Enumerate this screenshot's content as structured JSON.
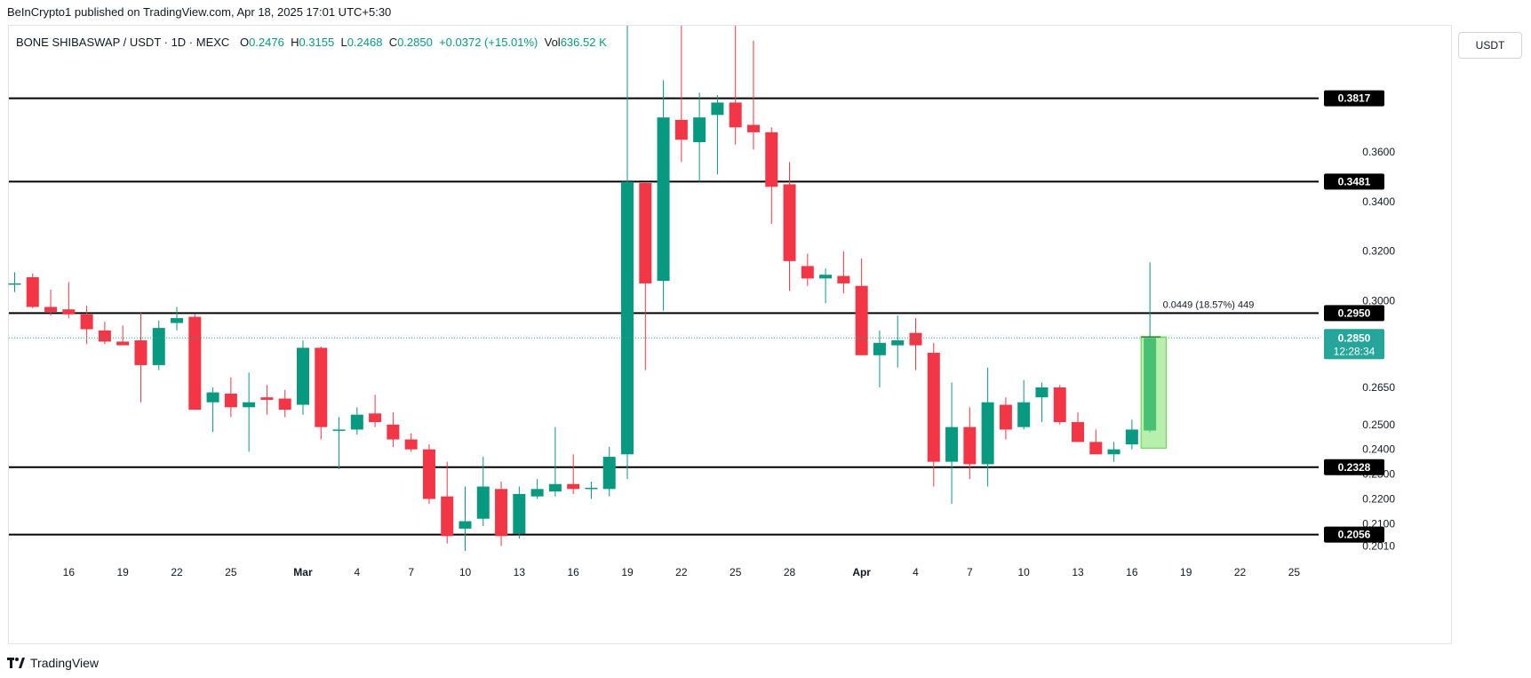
{
  "header": {
    "publisher": "BeInCrypto1 published on TradingView.com, Apr 18, 2025 17:01 UTC+5:30"
  },
  "legend": {
    "symbol": "BONE SHIBASWAP / USDT · 1D · MEXC",
    "o_label": "O",
    "o": "0.2476",
    "h_label": "H",
    "h": "0.3155",
    "l_label": "L",
    "l": "0.2468",
    "c_label": "C",
    "c": "0.2850",
    "change": "+0.0372 (+15.01%)",
    "vol_label": "Vol",
    "vol": "636.52 K"
  },
  "currency_button": "USDT",
  "footer": {
    "logo_text": "TradingView",
    "logo_icon": "tradingview-logo-icon"
  },
  "colors": {
    "up": "#089981",
    "down": "#f23645",
    "accent": "#26a69a",
    "measure": "#7ee26a"
  },
  "chart_data": {
    "type": "candlestick",
    "title": "BONE SHIBASWAP / USDT · 1D · MEXC",
    "ylim": [
      0.199,
      0.411
    ],
    "y_ticks": [
      "0.3600",
      "0.3400",
      "0.3200",
      "0.3000",
      "0.2650",
      "0.2500",
      "0.2400",
      "0.2300",
      "0.2200",
      "0.2100",
      "0.2010"
    ],
    "x_ticks": [
      {
        "label": "16",
        "day": 16
      },
      {
        "label": "19",
        "day": 19
      },
      {
        "label": "22",
        "day": 22
      },
      {
        "label": "25",
        "day": 25
      },
      {
        "label": "Mar",
        "day": 29
      },
      {
        "label": "4",
        "day": 32
      },
      {
        "label": "7",
        "day": 35
      },
      {
        "label": "10",
        "day": 38
      },
      {
        "label": "13",
        "day": 41
      },
      {
        "label": "16",
        "day": 44
      },
      {
        "label": "19",
        "day": 47
      },
      {
        "label": "22",
        "day": 50
      },
      {
        "label": "25",
        "day": 53
      },
      {
        "label": "28",
        "day": 56
      },
      {
        "label": "Apr",
        "day": 60
      },
      {
        "label": "4",
        "day": 63
      },
      {
        "label": "7",
        "day": 66
      },
      {
        "label": "10",
        "day": 69
      },
      {
        "label": "13",
        "day": 72
      },
      {
        "label": "16",
        "day": 75
      },
      {
        "label": "19",
        "day": 78
      },
      {
        "label": "22",
        "day": 81
      },
      {
        "label": "25",
        "day": 84
      }
    ],
    "levels": [
      "0.3817",
      "0.3481",
      "0.2950",
      "0.2328",
      "0.2056"
    ],
    "last_price": "0.2850",
    "countdown": "12:28:34",
    "measure_label": "0.0449 (18.57%) 449",
    "measure": {
      "from_day": 76,
      "to_day": 77,
      "low": 0.2405,
      "high": 0.2854
    },
    "candles": [
      {
        "d": 13,
        "o": 0.307,
        "h": 0.3115,
        "l": 0.3035,
        "c": 0.307
      },
      {
        "d": 14,
        "o": 0.3095,
        "h": 0.311,
        "l": 0.297,
        "c": 0.2975
      },
      {
        "d": 15,
        "o": 0.2975,
        "h": 0.3045,
        "l": 0.294,
        "c": 0.2955
      },
      {
        "d": 16,
        "o": 0.2965,
        "h": 0.3075,
        "l": 0.293,
        "c": 0.2945
      },
      {
        "d": 17,
        "o": 0.2945,
        "h": 0.298,
        "l": 0.2825,
        "c": 0.2885
      },
      {
        "d": 18,
        "o": 0.288,
        "h": 0.2915,
        "l": 0.2825,
        "c": 0.2835
      },
      {
        "d": 19,
        "o": 0.2835,
        "h": 0.29,
        "l": 0.2825,
        "c": 0.282
      },
      {
        "d": 20,
        "o": 0.284,
        "h": 0.2955,
        "l": 0.259,
        "c": 0.274
      },
      {
        "d": 21,
        "o": 0.274,
        "h": 0.292,
        "l": 0.272,
        "c": 0.289
      },
      {
        "d": 22,
        "o": 0.291,
        "h": 0.2975,
        "l": 0.288,
        "c": 0.293
      },
      {
        "d": 23,
        "o": 0.2935,
        "h": 0.2945,
        "l": 0.256,
        "c": 0.256
      },
      {
        "d": 24,
        "o": 0.259,
        "h": 0.265,
        "l": 0.247,
        "c": 0.263
      },
      {
        "d": 25,
        "o": 0.2625,
        "h": 0.269,
        "l": 0.253,
        "c": 0.257
      },
      {
        "d": 26,
        "o": 0.257,
        "h": 0.271,
        "l": 0.239,
        "c": 0.259
      },
      {
        "d": 27,
        "o": 0.261,
        "h": 0.266,
        "l": 0.254,
        "c": 0.26
      },
      {
        "d": 28,
        "o": 0.2605,
        "h": 0.264,
        "l": 0.253,
        "c": 0.256
      },
      {
        "d": 29,
        "o": 0.258,
        "h": 0.284,
        "l": 0.254,
        "c": 0.281
      },
      {
        "d": 30,
        "o": 0.281,
        "h": 0.2815,
        "l": 0.244,
        "c": 0.249
      },
      {
        "d": 31,
        "o": 0.2475,
        "h": 0.253,
        "l": 0.232,
        "c": 0.248
      },
      {
        "d": 32,
        "o": 0.248,
        "h": 0.257,
        "l": 0.246,
        "c": 0.254
      },
      {
        "d": 33,
        "o": 0.2545,
        "h": 0.262,
        "l": 0.249,
        "c": 0.251
      },
      {
        "d": 34,
        "o": 0.25,
        "h": 0.255,
        "l": 0.241,
        "c": 0.244
      },
      {
        "d": 35,
        "o": 0.244,
        "h": 0.2465,
        "l": 0.239,
        "c": 0.24
      },
      {
        "d": 36,
        "o": 0.24,
        "h": 0.242,
        "l": 0.218,
        "c": 0.22
      },
      {
        "d": 37,
        "o": 0.221,
        "h": 0.235,
        "l": 0.202,
        "c": 0.205
      },
      {
        "d": 38,
        "o": 0.208,
        "h": 0.225,
        "l": 0.199,
        "c": 0.211
      },
      {
        "d": 39,
        "o": 0.212,
        "h": 0.237,
        "l": 0.209,
        "c": 0.225
      },
      {
        "d": 40,
        "o": 0.224,
        "h": 0.227,
        "l": 0.201,
        "c": 0.205
      },
      {
        "d": 41,
        "o": 0.206,
        "h": 0.225,
        "l": 0.204,
        "c": 0.222
      },
      {
        "d": 42,
        "o": 0.221,
        "h": 0.228,
        "l": 0.22,
        "c": 0.224
      },
      {
        "d": 43,
        "o": 0.223,
        "h": 0.249,
        "l": 0.221,
        "c": 0.226
      },
      {
        "d": 44,
        "o": 0.226,
        "h": 0.238,
        "l": 0.222,
        "c": 0.224
      },
      {
        "d": 45,
        "o": 0.224,
        "h": 0.227,
        "l": 0.22,
        "c": 0.2245
      },
      {
        "d": 46,
        "o": 0.224,
        "h": 0.241,
        "l": 0.221,
        "c": 0.237
      },
      {
        "d": 47,
        "o": 0.238,
        "h": 0.411,
        "l": 0.228,
        "c": 0.348
      },
      {
        "d": 48,
        "o": 0.3475,
        "h": 0.348,
        "l": 0.272,
        "c": 0.307
      },
      {
        "d": 49,
        "o": 0.308,
        "h": 0.389,
        "l": 0.296,
        "c": 0.374
      },
      {
        "d": 50,
        "o": 0.373,
        "h": 0.411,
        "l": 0.356,
        "c": 0.365
      },
      {
        "d": 51,
        "o": 0.364,
        "h": 0.384,
        "l": 0.348,
        "c": 0.374
      },
      {
        "d": 52,
        "o": 0.375,
        "h": 0.383,
        "l": 0.351,
        "c": 0.38
      },
      {
        "d": 53,
        "o": 0.38,
        "h": 0.411,
        "l": 0.363,
        "c": 0.37
      },
      {
        "d": 54,
        "o": 0.371,
        "h": 0.405,
        "l": 0.361,
        "c": 0.368
      },
      {
        "d": 55,
        "o": 0.368,
        "h": 0.37,
        "l": 0.331,
        "c": 0.346
      },
      {
        "d": 56,
        "o": 0.347,
        "h": 0.356,
        "l": 0.304,
        "c": 0.316
      },
      {
        "d": 57,
        "o": 0.314,
        "h": 0.319,
        "l": 0.306,
        "c": 0.309
      },
      {
        "d": 58,
        "o": 0.309,
        "h": 0.313,
        "l": 0.299,
        "c": 0.3105
      },
      {
        "d": 59,
        "o": 0.31,
        "h": 0.32,
        "l": 0.303,
        "c": 0.307
      },
      {
        "d": 60,
        "o": 0.306,
        "h": 0.317,
        "l": 0.278,
        "c": 0.278
      },
      {
        "d": 61,
        "o": 0.278,
        "h": 0.288,
        "l": 0.265,
        "c": 0.283
      },
      {
        "d": 62,
        "o": 0.282,
        "h": 0.294,
        "l": 0.273,
        "c": 0.284
      },
      {
        "d": 63,
        "o": 0.287,
        "h": 0.293,
        "l": 0.272,
        "c": 0.282
      },
      {
        "d": 64,
        "o": 0.279,
        "h": 0.283,
        "l": 0.225,
        "c": 0.235
      },
      {
        "d": 65,
        "o": 0.235,
        "h": 0.267,
        "l": 0.218,
        "c": 0.249
      },
      {
        "d": 66,
        "o": 0.249,
        "h": 0.257,
        "l": 0.228,
        "c": 0.234
      },
      {
        "d": 67,
        "o": 0.234,
        "h": 0.273,
        "l": 0.225,
        "c": 0.259
      },
      {
        "d": 68,
        "o": 0.258,
        "h": 0.261,
        "l": 0.244,
        "c": 0.248
      },
      {
        "d": 69,
        "o": 0.249,
        "h": 0.268,
        "l": 0.248,
        "c": 0.259
      },
      {
        "d": 70,
        "o": 0.261,
        "h": 0.267,
        "l": 0.251,
        "c": 0.265
      },
      {
        "d": 71,
        "o": 0.265,
        "h": 0.266,
        "l": 0.25,
        "c": 0.251
      },
      {
        "d": 72,
        "o": 0.251,
        "h": 0.255,
        "l": 0.243,
        "c": 0.243
      },
      {
        "d": 73,
        "o": 0.243,
        "h": 0.248,
        "l": 0.238,
        "c": 0.238
      },
      {
        "d": 74,
        "o": 0.238,
        "h": 0.243,
        "l": 0.235,
        "c": 0.24
      },
      {
        "d": 75,
        "o": 0.242,
        "h": 0.252,
        "l": 0.24,
        "c": 0.248
      },
      {
        "d": 76,
        "o": 0.2476,
        "h": 0.3155,
        "l": 0.2468,
        "c": 0.285
      }
    ]
  }
}
